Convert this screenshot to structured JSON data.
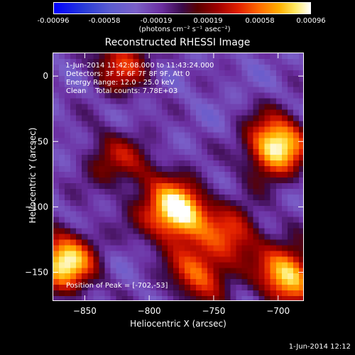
{
  "colorbar": {
    "ticks": [
      "-0.00096",
      "-0.00058",
      "-0.00019",
      "0.00019",
      "0.00058",
      "0.00096"
    ],
    "units": "(photons cm⁻² s⁻¹ asec⁻²)"
  },
  "chart_data": {
    "type": "heatmap",
    "title": "Reconstructed RHESSI Image",
    "xlabel": "Heliocentric X (arcsec)",
    "ylabel": "Heliocentric Y (arcsec)",
    "xlim": [
      -875,
      -680
    ],
    "ylim": [
      -172,
      18
    ],
    "x_ticks": [
      -850,
      -800,
      -750,
      -700
    ],
    "y_ticks": [
      0,
      -50,
      -100,
      -150
    ],
    "x_tick_labels": [
      "−850",
      "−800",
      "−750",
      "−700"
    ],
    "y_tick_labels": [
      "0",
      "−50",
      "−100",
      "−150"
    ],
    "colorbar_range": [
      -0.00096,
      0.00096
    ],
    "sources": [
      {
        "x": -778,
        "y": -103,
        "amp": 0.00096
      },
      {
        "x": -702,
        "y": -53,
        "amp": 0.00096
      },
      {
        "x": -866,
        "y": -142,
        "amp": 0.0009
      },
      {
        "x": -693,
        "y": -152,
        "amp": 0.00085
      },
      {
        "x": -762,
        "y": -150,
        "amp": 0.0006
      },
      {
        "x": -832,
        "y": -63,
        "amp": 0.0003
      },
      {
        "x": -822,
        "y": 10,
        "amp": 0.0005
      },
      {
        "x": -808,
        "y": -68,
        "amp": 0.0002
      },
      {
        "x": -800,
        "y": -105,
        "amp": 0.00015
      },
      {
        "x": -735,
        "y": -120,
        "amp": 0.0005
      }
    ]
  },
  "annotations": {
    "time_range": " 1-Jun-2014 11:42:08.000 to 11:43:24.000",
    "detectors": "Detectors: 3F 5F 6F 7F 8F 9F, Att 0",
    "energy": "Energy Range: 12.0 - 25.0 keV",
    "clean": "Clean    Total counts: 7.78E+03",
    "peak": "Position of Peak = [-702,-53]"
  },
  "footer": {
    "date": "1-Jun-2014 12:12"
  }
}
